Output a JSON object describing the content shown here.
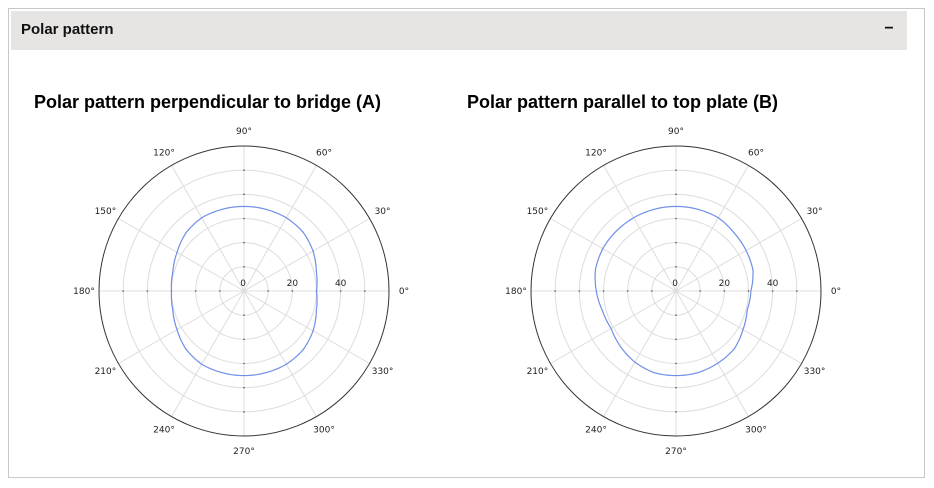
{
  "panel": {
    "title": "Polar pattern",
    "collapse_label": "−"
  },
  "colors": {
    "series": "#6f8fe8",
    "header_bg": "#e6e5e3",
    "grid": "#dddddd",
    "outer_ring": "#333333"
  },
  "chart_data": [
    {
      "type": "line",
      "coordinate_system": "polar",
      "title": "Polar pattern perpendicular to bridge (A)",
      "angle_ticks": [
        "0°",
        "30°",
        "60°",
        "90°",
        "120°",
        "150°",
        "180°",
        "210°",
        "240°",
        "270°",
        "300°",
        "330°"
      ],
      "radial_ticks": [
        "0",
        "20",
        "40"
      ],
      "radial_range": [
        0,
        60
      ],
      "grid": true,
      "series": [
        {
          "theta": [
            0,
            15,
            30,
            45,
            60,
            75,
            90,
            105,
            120,
            135,
            150,
            165,
            180,
            195,
            210,
            225,
            240,
            255,
            270,
            285,
            300,
            315,
            330,
            345
          ],
          "r": [
            30,
            31,
            33,
            34.5,
            35,
            35,
            35,
            35,
            35,
            34,
            32,
            30.5,
            30,
            30.5,
            32,
            34,
            35,
            35,
            35,
            35,
            35,
            34.5,
            33,
            31
          ]
        }
      ]
    },
    {
      "type": "line",
      "coordinate_system": "polar",
      "title": "Polar pattern parallel to top plate (B)",
      "angle_ticks": [
        "0°",
        "30°",
        "60°",
        "90°",
        "120°",
        "150°",
        "180°",
        "210°",
        "240°",
        "270°",
        "300°",
        "330°"
      ],
      "radial_ticks": [
        "0",
        "20",
        "40"
      ],
      "radial_range": [
        0,
        60
      ],
      "grid": true,
      "series": [
        {
          "theta": [
            0,
            15,
            30,
            45,
            60,
            75,
            90,
            105,
            120,
            135,
            150,
            165,
            180,
            195,
            210,
            225,
            240,
            255,
            270,
            285,
            300,
            315,
            330,
            345
          ],
          "r": [
            31,
            33,
            33.5,
            34,
            35,
            35,
            35,
            35,
            35,
            35,
            35,
            34.5,
            33,
            31.5,
            31,
            32.5,
            34,
            35,
            35,
            35,
            34.5,
            34,
            32,
            30.5
          ]
        }
      ]
    }
  ]
}
